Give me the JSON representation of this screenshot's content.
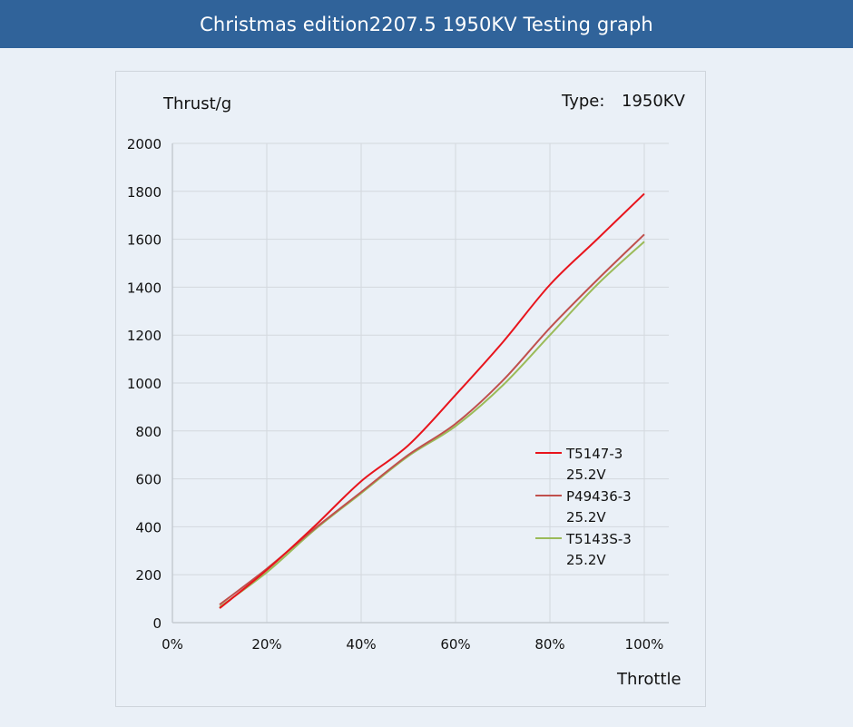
{
  "header": {
    "title": "Christmas edition2207.5 1950KV Testing graph"
  },
  "chart_labels": {
    "y_unit": "Thrust/g",
    "type_label": "Type:",
    "type_value": "1950KV",
    "x_label": "Throttle"
  },
  "colors": {
    "header_bg": "#30639a",
    "background": "#eaf0f7",
    "grid": "#d3d8de",
    "series_red": "#e8141c",
    "series_mauve": "#c0504d",
    "series_green": "#9bbb59"
  },
  "chart_data": {
    "type": "line",
    "title": "Christmas edition2207.5 1950KV Testing graph",
    "xlabel": "Throttle",
    "ylabel": "Thrust/g",
    "annotation": "Type: 1950KV",
    "x": [
      "10%",
      "20%",
      "30%",
      "40%",
      "50%",
      "60%",
      "70%",
      "80%",
      "90%",
      "100%"
    ],
    "x_numeric": [
      10,
      20,
      30,
      40,
      50,
      60,
      70,
      80,
      90,
      100
    ],
    "xlim": [
      0,
      100
    ],
    "x_ticks": [
      "0%",
      "20%",
      "40%",
      "60%",
      "80%",
      "100%"
    ],
    "ylim": [
      0,
      2000
    ],
    "y_ticks": [
      "0",
      "200",
      "400",
      "600",
      "800",
      "1000",
      "1200",
      "1400",
      "1600",
      "1800",
      "2000"
    ],
    "grid": true,
    "legend_position": "right-inside-lower",
    "series": [
      {
        "name": "T5147-3 25.2V",
        "name_line1": "T5147-3",
        "name_line2": "25.2V",
        "color": "#e8141c",
        "values": [
          60,
          220,
          400,
          590,
          740,
          950,
          1170,
          1410,
          1600,
          1790
        ]
      },
      {
        "name": "P49436-3 25.2V",
        "name_line1": "P49436-3",
        "name_line2": "25.2V",
        "color": "#c0504d",
        "values": [
          75,
          225,
          390,
          545,
          700,
          830,
          1010,
          1230,
          1430,
          1620
        ]
      },
      {
        "name": "T5143S-3 25.2V",
        "name_line1": "T5143S-3",
        "name_line2": "25.2V",
        "color": "#9bbb59",
        "values": [
          65,
          210,
          385,
          540,
          695,
          820,
          990,
          1200,
          1410,
          1590
        ]
      }
    ]
  }
}
